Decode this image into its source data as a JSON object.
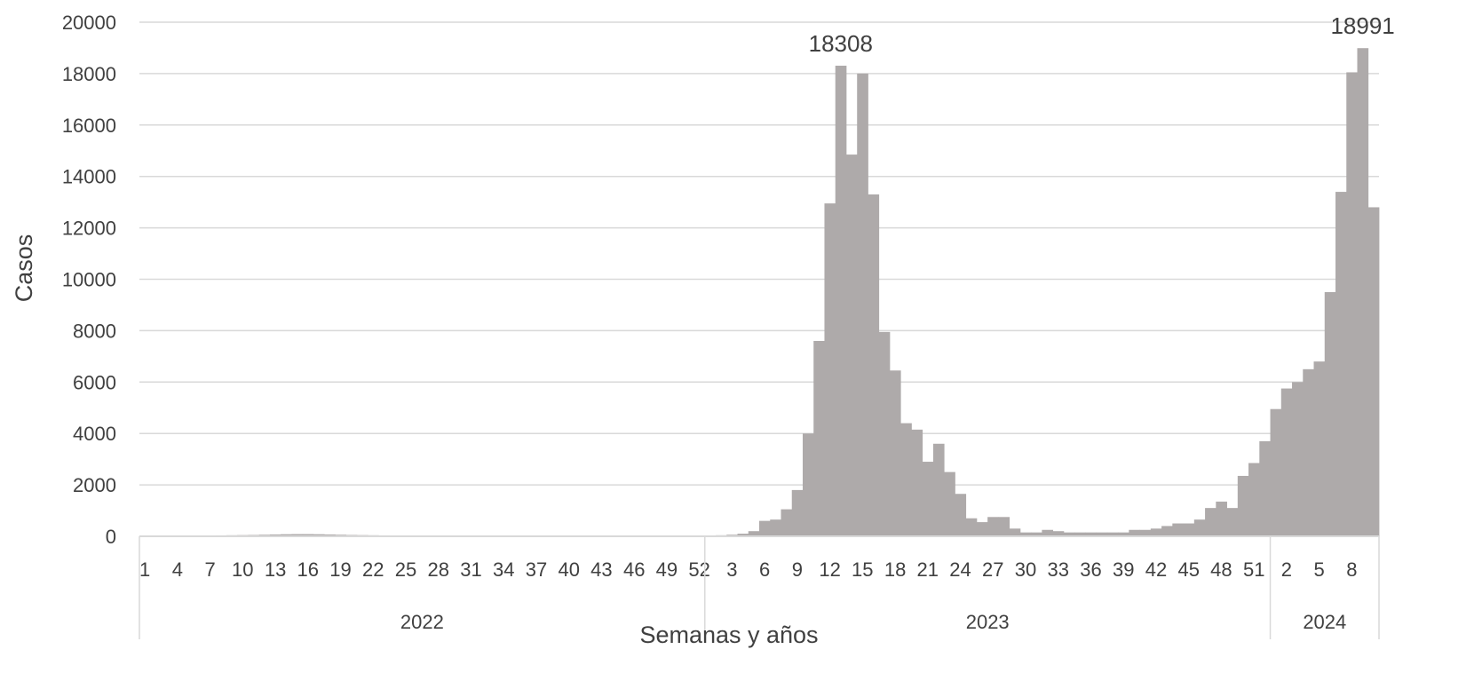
{
  "chart_data": {
    "type": "bar",
    "title": "",
    "xlabel": "Semanas y años",
    "ylabel": "Casos",
    "ylim": [
      0,
      20000
    ],
    "yticks": [
      "0",
      "2000",
      "4000",
      "6000",
      "8000",
      "10000",
      "12000",
      "14000",
      "16000",
      "18000",
      "20000"
    ],
    "grid": true,
    "legend": "none",
    "bar_color": "#aeaaaa",
    "groups": [
      {
        "label": "2022",
        "weeks": 52,
        "tick_labels": [
          "1",
          "4",
          "7",
          "10",
          "13",
          "16",
          "19",
          "22",
          "25",
          "28",
          "31",
          "34",
          "37",
          "40",
          "43",
          "46",
          "49",
          "52"
        ],
        "values": [
          5,
          10,
          15,
          20,
          25,
          30,
          30,
          35,
          40,
          45,
          50,
          60,
          70,
          80,
          85,
          85,
          80,
          70,
          60,
          50,
          45,
          40,
          35,
          30,
          25,
          20,
          20,
          20,
          20,
          25,
          25,
          25,
          25,
          25,
          25,
          25,
          25,
          25,
          25,
          25,
          25,
          25,
          25,
          25,
          25,
          25,
          25,
          25,
          25,
          25,
          25,
          25
        ]
      },
      {
        "label": "2023",
        "weeks": 52,
        "tick_labels": [
          "3",
          "6",
          "9",
          "12",
          "15",
          "18",
          "21",
          "24",
          "27",
          "30",
          "33",
          "36",
          "39",
          "42",
          "45",
          "48",
          "51"
        ],
        "values": [
          30,
          40,
          60,
          100,
          200,
          600,
          650,
          1050,
          1800,
          4000,
          7600,
          12950,
          18308,
          14850,
          18000,
          13300,
          7950,
          6450,
          4400,
          4150,
          2900,
          3600,
          2500,
          1650,
          700,
          550,
          750,
          750,
          300,
          150,
          150,
          250,
          200,
          150,
          150,
          150,
          150,
          150,
          150,
          250,
          250,
          300,
          400,
          500,
          500,
          650,
          1100,
          1350,
          1100,
          2350,
          2850,
          3700
        ]
      },
      {
        "label": "2024",
        "weeks": 10,
        "tick_labels": [
          "2",
          "5",
          "8"
        ],
        "values": [
          4950,
          5750,
          6000,
          6500,
          6800,
          9500,
          13400,
          18050,
          18991,
          12800
        ]
      }
    ],
    "data_labels": [
      {
        "group": 1,
        "week": 13,
        "text": "18308"
      },
      {
        "group": 2,
        "week": 9,
        "text": "18991"
      }
    ]
  }
}
